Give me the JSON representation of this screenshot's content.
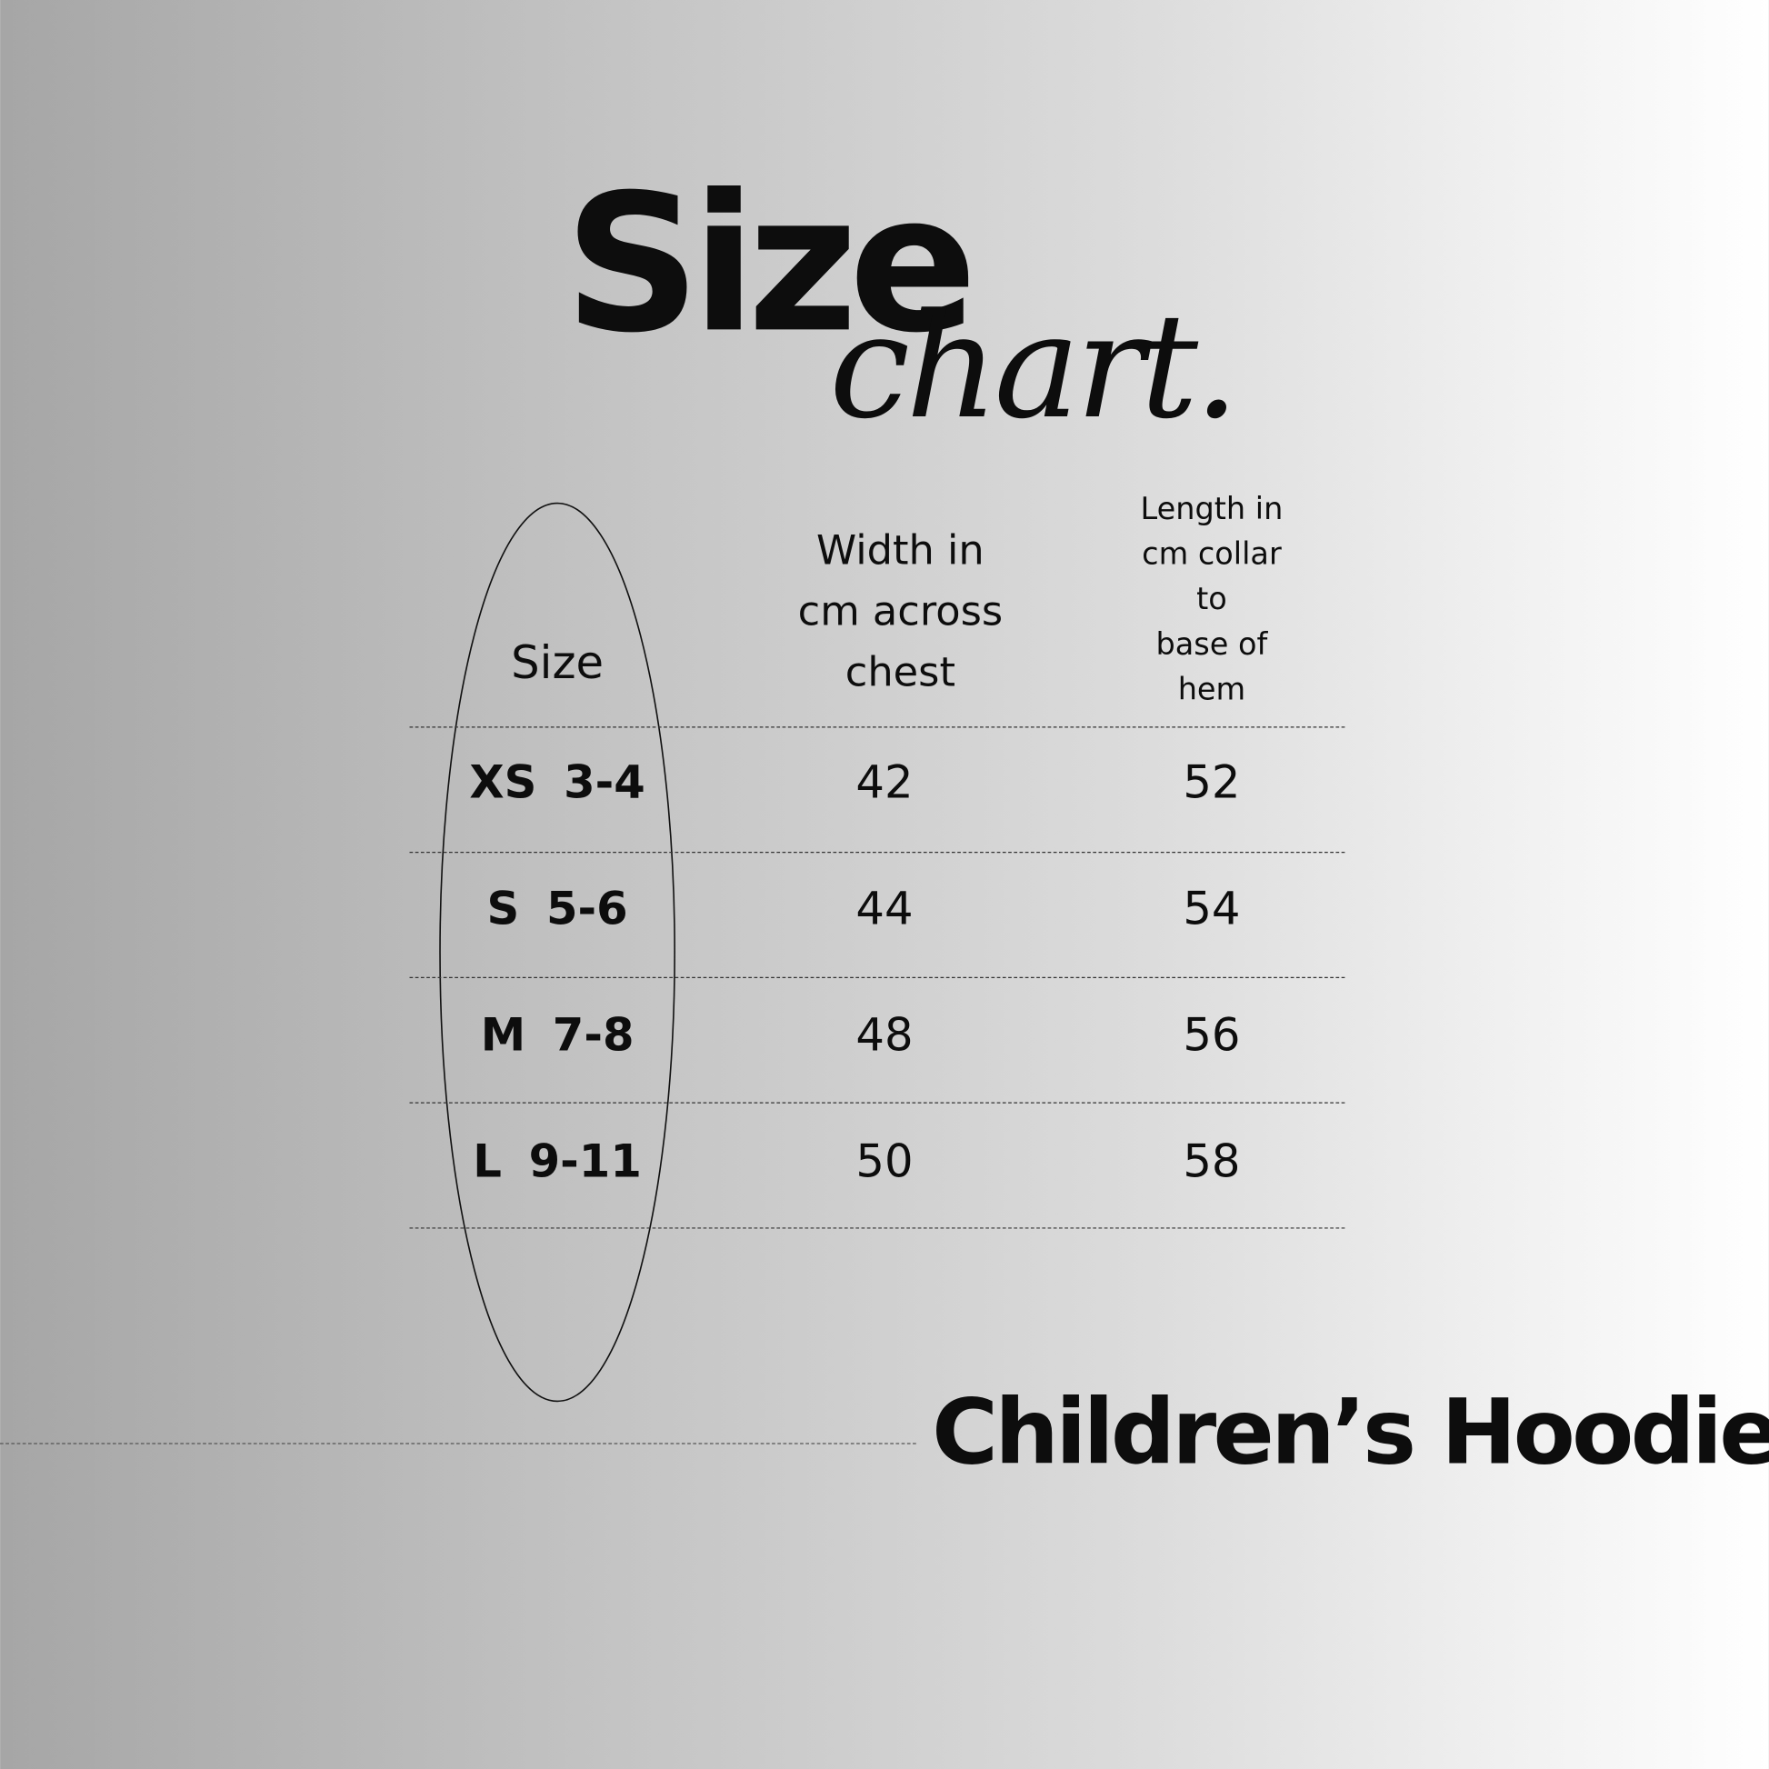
{
  "title": {
    "main": "Size",
    "script": "chart."
  },
  "table": {
    "headers": {
      "size": "Size",
      "width": [
        "Width in",
        "cm across",
        "chest"
      ],
      "length": [
        "Length in",
        "cm collar",
        "to",
        "base of",
        "hem"
      ]
    },
    "rows": [
      {
        "size": "XS 3-4",
        "width": "42",
        "length": "52"
      },
      {
        "size": "S 5-6",
        "width": "44",
        "length": "54"
      },
      {
        "size": "M 7-8",
        "width": "48",
        "length": "56"
      },
      {
        "size": "L 9-11",
        "width": "50",
        "length": "58"
      }
    ]
  },
  "product": "Children’s Hoodies",
  "colors": {
    "text": "#0d0d0d",
    "background_left": "#a6a6a6",
    "background_right": "#ffffff"
  }
}
